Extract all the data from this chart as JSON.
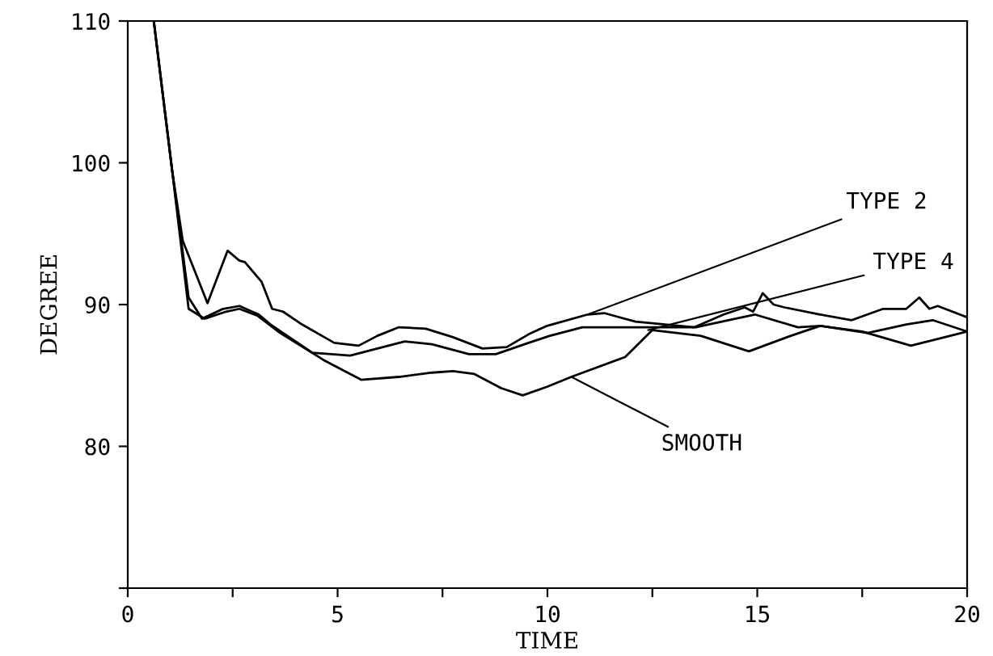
{
  "chart_data": {
    "type": "line",
    "xlabel": "TIME",
    "ylabel": "DEGREE",
    "xlim": [
      0,
      20
    ],
    "ylim": [
      70,
      110
    ],
    "xticks": [
      0,
      {
        "value": 2.5,
        "label": null
      },
      5,
      {
        "value": 7.5,
        "label": null
      },
      10,
      {
        "value": 12.5,
        "label": null
      },
      15,
      {
        "value": 17.5,
        "label": null
      },
      20
    ],
    "yticks": [
      {
        "value": 70,
        "label": null
      },
      80,
      90,
      100,
      110
    ],
    "grid": false,
    "marker": "none",
    "line_style": "solid",
    "series": [
      {
        "color": "#000000",
        "x": [
          0.62,
          1.06,
          1.31,
          1.9,
          2.38,
          2.66,
          2.79,
          3.19,
          3.44,
          3.7,
          4.15,
          4.92,
          5.5,
          5.95,
          6.46,
          7.1,
          7.75,
          8.45,
          9.03,
          9.55,
          9.99,
          10.96,
          11.35,
          12.1,
          13.5,
          14.2,
          14.7,
          14.9,
          15.13,
          15.39,
          15.65,
          16.5,
          17.25,
          18.0,
          18.55,
          18.86,
          19.1,
          19.3,
          20.0
        ],
        "values": [
          110,
          99.4,
          94.5,
          90.1,
          93.8,
          93.1,
          93.0,
          91.6,
          89.7,
          89.5,
          88.6,
          87.3,
          87.1,
          87.8,
          88.4,
          88.3,
          87.7,
          86.9,
          87.0,
          87.9,
          88.5,
          89.3,
          89.4,
          88.8,
          88.4,
          89.3,
          89.8,
          89.5,
          90.8,
          90.0,
          89.8,
          89.3,
          88.9,
          89.7,
          89.7,
          90.5,
          89.7,
          89.9,
          89.1
        ]
      },
      {
        "color": "#000000",
        "x": [
          0.62,
          1.06,
          1.45,
          1.77,
          2.27,
          2.66,
          3.12,
          3.4,
          4.4,
          5.3,
          5.95,
          6.6,
          7.25,
          8.13,
          8.77,
          9.55,
          10.06,
          10.83,
          11.85,
          13.53,
          14.94,
          15.97,
          16.5,
          17.63,
          18.55,
          19.18,
          20.0
        ],
        "values": [
          110,
          99.4,
          90.5,
          89.0,
          89.7,
          89.9,
          89.3,
          88.6,
          86.6,
          86.4,
          86.9,
          87.4,
          87.2,
          86.5,
          86.5,
          87.3,
          87.8,
          88.4,
          88.4,
          88.4,
          89.3,
          88.4,
          88.5,
          88.0,
          88.6,
          88.9,
          88.1
        ]
      },
      {
        "color": "#000000",
        "x": [
          0.62,
          1.06,
          1.45,
          1.83,
          2.34,
          2.66,
          3.1,
          3.63,
          4.66,
          5.56,
          6.46,
          7.25,
          7.75,
          8.26,
          8.9,
          9.41,
          9.99,
          10.57,
          11.85,
          12.5,
          13.65,
          14.8,
          15.8,
          16.5,
          17.5,
          18.66,
          19.6,
          20.0
        ],
        "values": [
          110,
          99.4,
          89.7,
          89.0,
          89.5,
          89.7,
          89.2,
          88.0,
          86.1,
          84.7,
          84.9,
          85.2,
          85.3,
          85.1,
          84.1,
          83.6,
          84.2,
          84.9,
          86.3,
          88.2,
          87.8,
          86.7,
          87.8,
          88.5,
          88.1,
          87.1,
          87.8,
          88.1
        ]
      }
    ],
    "annotations": [
      {
        "text": "TYPE 2",
        "x": 10.96,
        "y": 89.3
      },
      {
        "text": "TYPE 4",
        "x": 12.4,
        "y": 88.2
      },
      {
        "text": "SMOOTH",
        "x": 10.57,
        "y": 84.9
      }
    ]
  }
}
